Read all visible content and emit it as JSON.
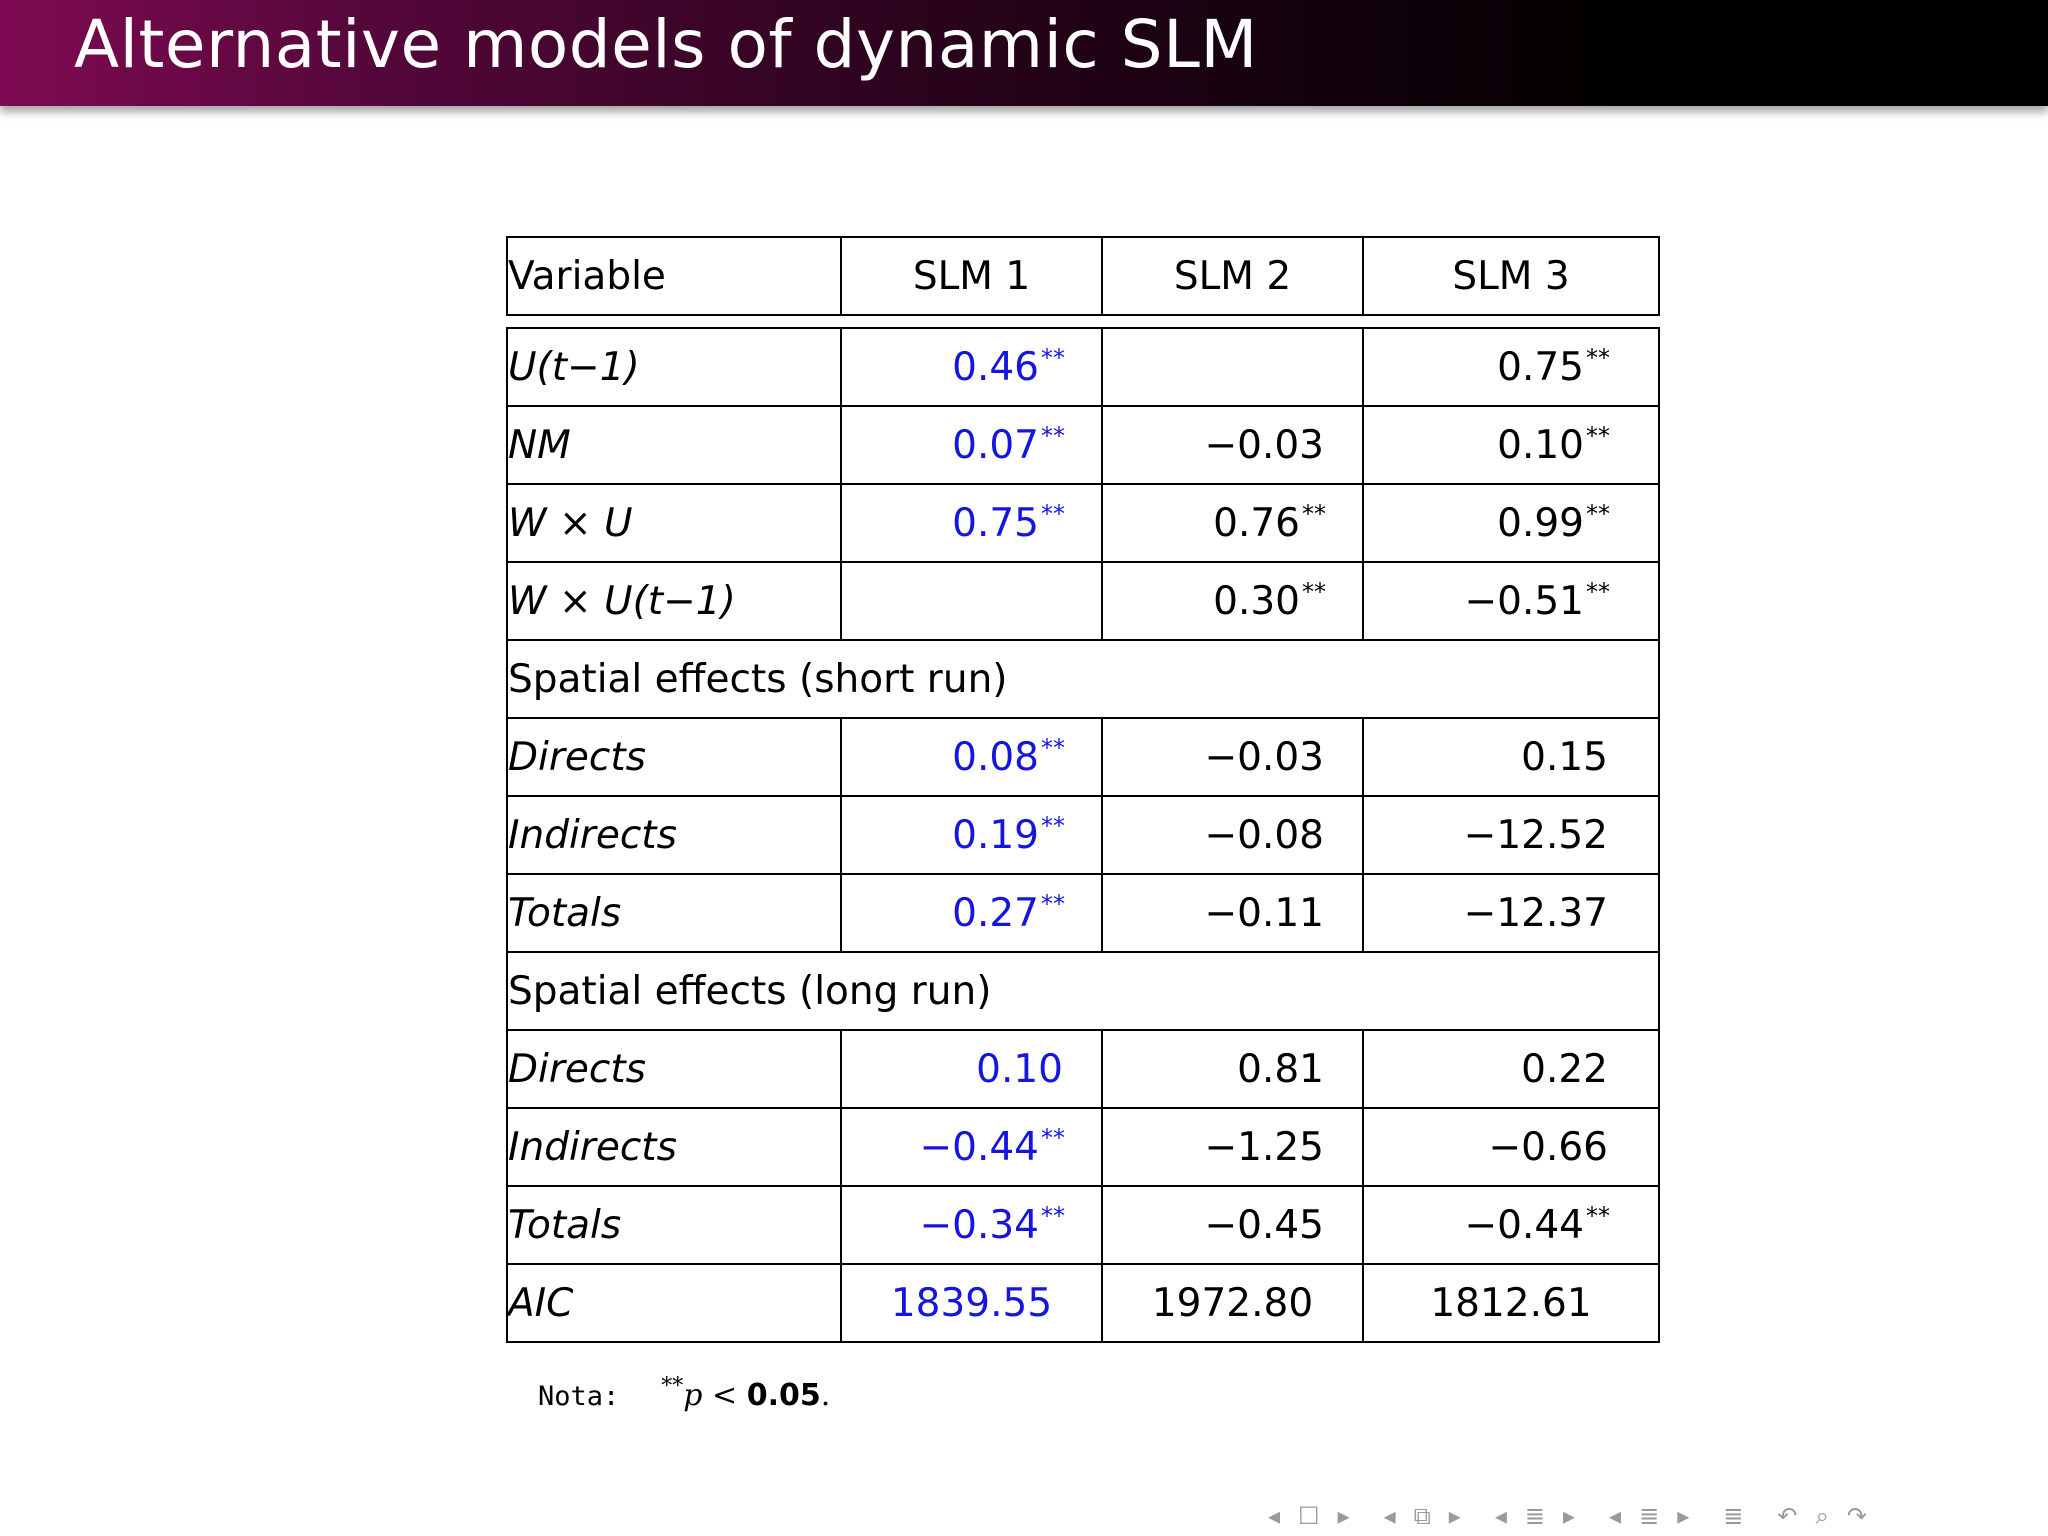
{
  "slide": {
    "title": "Alternative models of dynamic SLM"
  },
  "table": {
    "headers": [
      "Variable",
      "SLM 1",
      "SLM 2",
      "SLM 3"
    ],
    "rows": [
      {
        "var": "U(t−1)",
        "v": [
          "0.46",
          "",
          "0.75"
        ],
        "sig": [
          "**",
          "",
          "**"
        ]
      },
      {
        "var": "NM",
        "v": [
          "0.07",
          "−0.03",
          "0.10"
        ],
        "sig": [
          "**",
          "",
          "**"
        ]
      },
      {
        "var": "W × U",
        "v": [
          "0.75",
          "0.76",
          "0.99"
        ],
        "sig": [
          "**",
          "**",
          "**"
        ]
      },
      {
        "var": "W × U(t−1)",
        "v": [
          "",
          "0.30",
          "−0.51"
        ],
        "sig": [
          "",
          "**",
          "**"
        ]
      }
    ],
    "section_short": "Spatial effects (short run)",
    "short_rows": [
      {
        "var": "Directs",
        "v": [
          "0.08",
          "−0.03",
          "0.15"
        ],
        "sig": [
          "**",
          "",
          ""
        ]
      },
      {
        "var": "Indirects",
        "v": [
          "0.19",
          "−0.08",
          "−12.52"
        ],
        "sig": [
          "**",
          "",
          ""
        ]
      },
      {
        "var": "Totals",
        "v": [
          "0.27",
          "−0.11",
          "−12.37"
        ],
        "sig": [
          "**",
          "",
          ""
        ]
      }
    ],
    "section_long": "Spatial effects (long run)",
    "long_rows": [
      {
        "var": "Directs",
        "v": [
          "0.10",
          "0.81",
          "0.22"
        ],
        "sig": [
          "",
          "",
          ""
        ]
      },
      {
        "var": "Indirects",
        "v": [
          "−0.44",
          "−1.25",
          "−0.66"
        ],
        "sig": [
          "**",
          "",
          ""
        ]
      },
      {
        "var": "Totals",
        "v": [
          "−0.34",
          "−0.45",
          "−0.44"
        ],
        "sig": [
          "**",
          "",
          "**"
        ]
      }
    ],
    "aic": {
      "var": "AIC",
      "v": [
        "1839.55",
        "1972.80",
        "1812.61"
      ]
    }
  },
  "note": {
    "label": "Nota:",
    "stars": "**",
    "p": "p",
    "lt": " < ",
    "threshold": "0.05",
    "end": "."
  },
  "nav": {
    "icons": [
      "nav-prev-frame",
      "nav-frame",
      "nav-next-frame",
      "nav-prev-subsection",
      "nav-subsection",
      "nav-next-subsection",
      "nav-prev-section",
      "nav-section",
      "nav-next-section",
      "nav-prev-doc",
      "nav-doc",
      "nav-next-doc",
      "nav-appendix",
      "nav-search",
      "nav-zoom",
      "nav-back"
    ]
  },
  "colors": {
    "highlight": "#1515e0",
    "title_bar_start": "#7e0a52",
    "title_bar_end": "#000000",
    "nav": "#9a9a9a"
  }
}
